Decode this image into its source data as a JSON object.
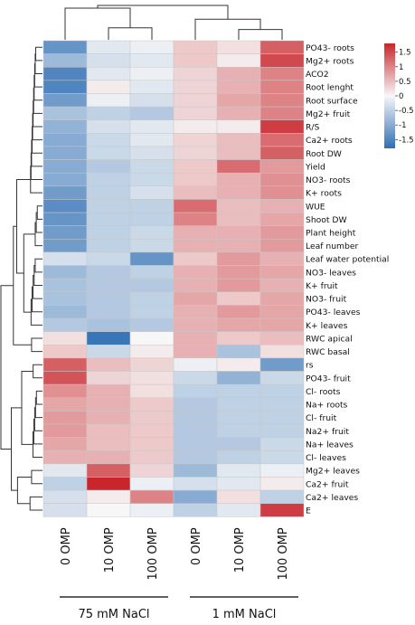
{
  "chart_data": {
    "type": "heatmap",
    "columns": [
      "0 OMP",
      "10 OMP",
      "100 OMP",
      "0 OMP",
      "10 OMP",
      "100 OMP"
    ],
    "column_groups": [
      {
        "label": "75 mM NaCl",
        "columns": [
          0,
          1,
          2
        ]
      },
      {
        "label": "1 mM NaCl",
        "columns": [
          3,
          4,
          5
        ]
      }
    ],
    "rows": [
      "PO43- roots",
      "Mg2+ roots",
      "ACO2",
      "Root lenght",
      "Root surface",
      "Mg2+ fruit",
      "R/S",
      "Ca2+ roots",
      "Root DW",
      "Yield",
      "NO3- roots",
      "K+ roots",
      "WUE",
      "Shoot DW",
      "Plant height",
      "Leaf number",
      "Leaf water potential",
      "NO3- leaves",
      "K+ fruit",
      "NO3- fruit",
      "PO43- leaves",
      "K+ leaves",
      "RWC apical",
      "RWC basal",
      "rs",
      "PO43- fruit",
      "Cl- roots",
      "Na+ roots",
      "Cl- fruit",
      "Na2+ fruit",
      "Na+ leaves",
      "Cl- leaves",
      "Mg2+ leaves",
      "Ca2+ fruit",
      "Ca2+ leaves",
      "E"
    ],
    "values": [
      [
        -1.3,
        -0.2,
        -0.1,
        0.4,
        0.2,
        1.3
      ],
      [
        -0.8,
        -0.3,
        -0.2,
        0.4,
        0.1,
        1.5
      ],
      [
        -1.5,
        -0.2,
        -0.1,
        0.3,
        0.6,
        1.0
      ],
      [
        -1.5,
        0.1,
        -0.2,
        0.3,
        0.6,
        1.0
      ],
      [
        -1.2,
        -0.1,
        -0.3,
        0.3,
        0.7,
        1.0
      ],
      [
        -0.7,
        -0.5,
        -0.6,
        0.3,
        0.6,
        1.0
      ],
      [
        -0.9,
        -0.3,
        -0.2,
        0.1,
        0.1,
        1.6
      ],
      [
        -1.0,
        -0.4,
        -0.2,
        0.3,
        0.5,
        1.2
      ],
      [
        -1.0,
        -0.4,
        -0.3,
        0.3,
        0.5,
        1.3
      ],
      [
        -1.0,
        -0.6,
        -0.4,
        0.4,
        1.2,
        0.8
      ],
      [
        -1.0,
        -0.5,
        -0.4,
        0.4,
        0.6,
        0.9
      ],
      [
        -1.2,
        -0.5,
        -0.3,
        0.5,
        0.6,
        0.9
      ],
      [
        -1.4,
        -0.5,
        -0.5,
        1.2,
        0.5,
        0.6
      ],
      [
        -1.3,
        -0.5,
        -0.5,
        1.0,
        0.5,
        0.7
      ],
      [
        -1.2,
        -0.5,
        -0.4,
        0.6,
        0.6,
        0.8
      ],
      [
        -1.2,
        -0.5,
        -0.4,
        0.6,
        0.6,
        0.8
      ],
      [
        -0.3,
        -0.4,
        -1.3,
        0.4,
        0.8,
        0.6
      ],
      [
        -0.8,
        -0.6,
        -0.5,
        0.6,
        0.8,
        0.7
      ],
      [
        -0.7,
        -0.6,
        -0.6,
        0.6,
        0.8,
        0.6
      ],
      [
        -0.7,
        -0.6,
        -0.5,
        0.7,
        0.4,
        0.7
      ],
      [
        -0.8,
        -0.6,
        -0.5,
        0.6,
        0.8,
        0.7
      ],
      [
        -0.6,
        -0.7,
        -0.6,
        0.6,
        0.7,
        0.7
      ],
      [
        0.2,
        -1.7,
        0.0,
        0.6,
        0.4,
        0.5
      ],
      [
        0.4,
        -0.4,
        0.1,
        0.6,
        -0.7,
        0.2
      ],
      [
        1.3,
        0.5,
        0.3,
        -0.1,
        0.1,
        -1.2
      ],
      [
        1.4,
        0.3,
        0.2,
        -0.4,
        -0.9,
        -0.4
      ],
      [
        0.9,
        0.6,
        0.2,
        -0.5,
        -0.5,
        -0.5
      ],
      [
        0.7,
        0.6,
        0.4,
        -0.6,
        -0.5,
        -0.5
      ],
      [
        0.8,
        0.6,
        0.4,
        -0.6,
        -0.5,
        -0.5
      ],
      [
        0.8,
        0.5,
        0.4,
        -0.6,
        -0.5,
        -0.5
      ],
      [
        0.7,
        0.5,
        0.4,
        -0.6,
        -0.6,
        -0.4
      ],
      [
        0.6,
        0.6,
        0.4,
        -0.6,
        -0.5,
        -0.4
      ],
      [
        -0.2,
        1.3,
        0.3,
        -0.8,
        -0.2,
        -0.1
      ],
      [
        -0.5,
        1.8,
        -0.1,
        -0.3,
        -0.2,
        0.1
      ],
      [
        -0.3,
        0.1,
        1.0,
        -1.0,
        0.2,
        -0.5
      ],
      [
        -0.3,
        0.0,
        -0.1,
        -0.5,
        -0.2,
        1.6
      ]
    ],
    "color_scale": {
      "min": -1.8,
      "max": 1.8,
      "low": "#2e6eb4",
      "mid": "#f7f7f7",
      "high": "#c8262c"
    },
    "legend_ticks": [
      1.5,
      1,
      0.5,
      0,
      -0.5,
      -1,
      -1.5
    ],
    "legend_tick_labels": [
      "1.5",
      "1",
      "0.5",
      "0",
      "-0.5",
      "-1",
      "-1.5"
    ],
    "title": "",
    "xlabel": "",
    "ylabel": ""
  }
}
